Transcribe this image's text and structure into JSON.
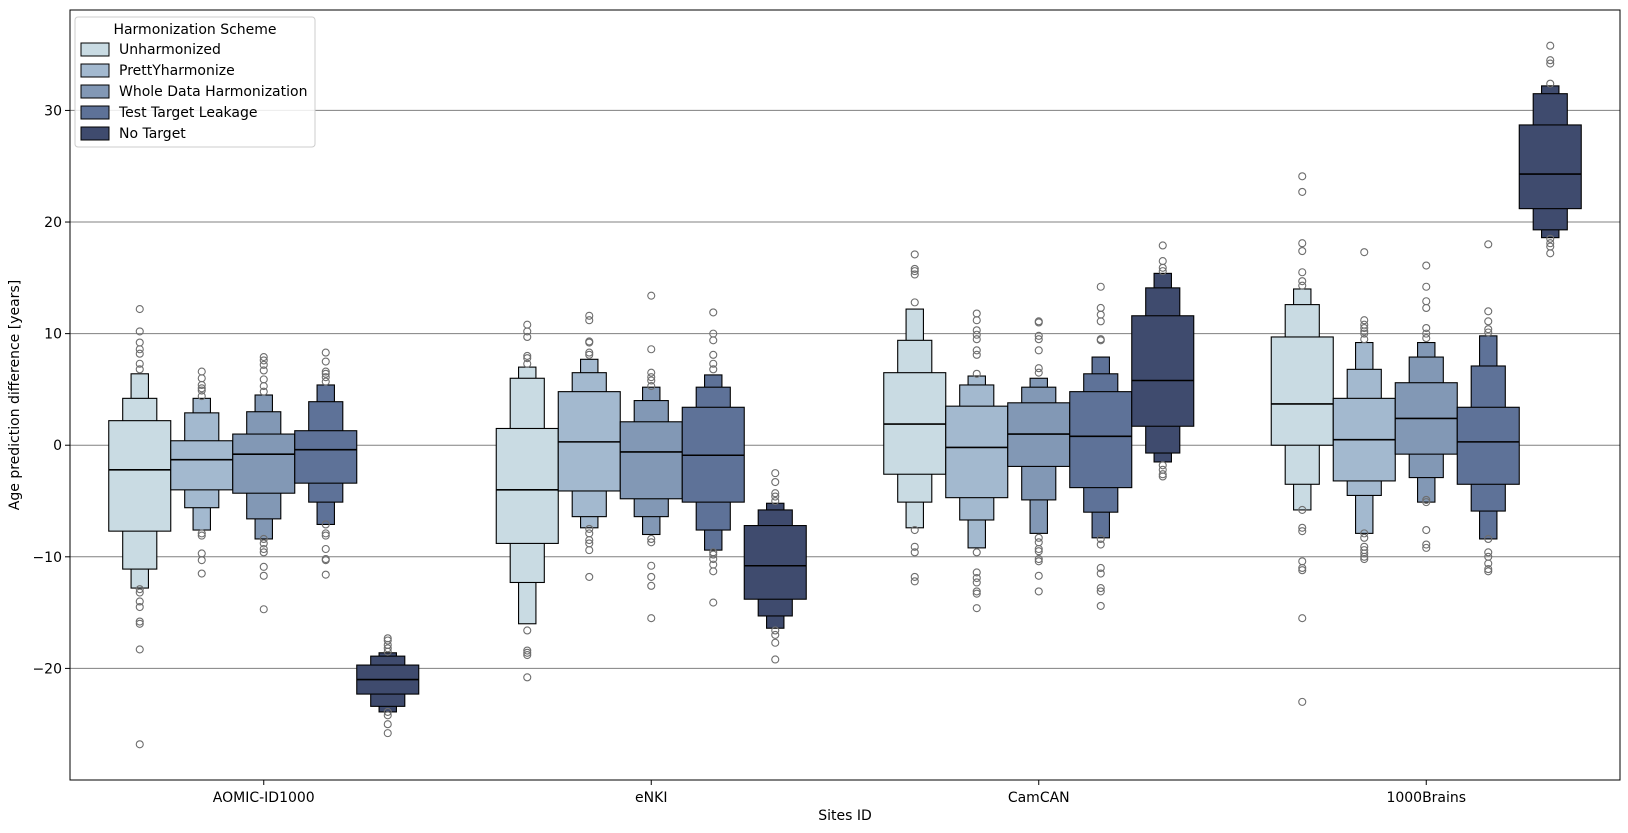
{
  "chart_data": {
    "type": "boxenplot",
    "xlabel": "Sites ID",
    "ylabel": "Age prediction difference [years]",
    "ylim": [
      -30,
      39
    ],
    "yticks": [
      -20,
      -10,
      0,
      10,
      20,
      30
    ],
    "ytick_labels": [
      "−20",
      "−10",
      "0",
      "10",
      "20",
      "30"
    ],
    "grid": "horizontal",
    "categories": [
      "AOMIC-ID1000",
      "eNKI",
      "CamCAN",
      "1000Brains"
    ],
    "legend": {
      "title": "Harmonization Scheme",
      "location": "top-left",
      "entries": [
        "Unharmonized",
        "PrettYharmonize",
        "Whole Data Harmonization",
        "Test Target Leakage",
        "No Target"
      ]
    },
    "colors": [
      "#c9dbe3",
      "#a3b9cf",
      "#8298b5",
      "#5e7298",
      "#3f4b6e"
    ],
    "series": [
      {
        "name": "Unharmonized",
        "boxes": [
          {
            "median": -2.2,
            "levels": [
              [
                -7.7,
                2.2
              ],
              [
                -11.1,
                4.2
              ],
              [
                -12.8,
                6.4
              ]
            ],
            "outliers": [
              -26.8,
              -18.3,
              -16.0,
              -15.8,
              -14.5,
              -14.0,
              -13.2,
              -12.9,
              6.8,
              7.3,
              8.2,
              8.6,
              9.2,
              10.2,
              12.2
            ]
          },
          {
            "median": -4.0,
            "levels": [
              [
                -8.8,
                1.5
              ],
              [
                -12.3,
                6.0
              ],
              [
                -16.0,
                7.0
              ]
            ],
            "outliers": [
              -20.8,
              -18.8,
              -18.6,
              -18.4,
              -16.6,
              7.3,
              7.8,
              8.0,
              9.7,
              10.2,
              10.8
            ]
          },
          {
            "median": 1.9,
            "levels": [
              [
                -2.6,
                6.5
              ],
              [
                -5.1,
                9.4
              ],
              [
                -7.4,
                12.2
              ]
            ],
            "outliers": [
              -12.2,
              -11.8,
              -9.6,
              -9.1,
              -7.6,
              12.8,
              15.3,
              15.6,
              15.8,
              17.1
            ]
          },
          {
            "median": 3.7,
            "levels": [
              [
                0.0,
                9.7
              ],
              [
                -3.5,
                12.6
              ],
              [
                -5.8,
                14.0
              ]
            ],
            "outliers": [
              -23.0,
              -15.5,
              -11.2,
              -11.0,
              -10.4,
              -7.7,
              -7.4,
              -5.8,
              14.3,
              14.7,
              15.5,
              17.4,
              18.1,
              22.7,
              24.1
            ]
          }
        ]
      },
      {
        "name": "PrettYharmonize",
        "boxes": [
          {
            "median": -1.3,
            "levels": [
              [
                -4.0,
                0.4
              ],
              [
                -5.6,
                2.9
              ],
              [
                -7.6,
                4.2
              ]
            ],
            "outliers": [
              -11.5,
              -10.3,
              -9.7,
              -8.1,
              -7.9,
              4.4,
              4.9,
              5.1,
              5.4,
              6.0,
              6.6
            ]
          },
          {
            "median": 0.3,
            "levels": [
              [
                -4.1,
                4.8
              ],
              [
                -6.4,
                6.5
              ],
              [
                -7.4,
                7.7
              ]
            ],
            "outliers": [
              -11.8,
              -9.4,
              -8.8,
              -8.5,
              -7.9,
              -7.5,
              8.1,
              8.3,
              9.2,
              9.3,
              11.2,
              11.6
            ]
          },
          {
            "median": -0.2,
            "levels": [
              [
                -4.7,
                3.5
              ],
              [
                -6.7,
                5.4
              ],
              [
                -9.2,
                6.2
              ]
            ],
            "outliers": [
              -14.6,
              -13.3,
              -13.1,
              -12.3,
              -11.9,
              -11.4,
              -9.6,
              6.4,
              8.1,
              8.5,
              9.5,
              9.9,
              10.3,
              11.2,
              11.8
            ]
          },
          {
            "median": 0.5,
            "levels": [
              [
                -3.2,
                4.2
              ],
              [
                -4.5,
                6.8
              ],
              [
                -7.9,
                9.2
              ]
            ],
            "outliers": [
              -10.2,
              -10.0,
              -9.7,
              -9.4,
              -9.1,
              -8.3,
              -7.9,
              9.5,
              10.0,
              10.2,
              10.5,
              10.8,
              11.2,
              17.3
            ]
          }
        ]
      },
      {
        "name": "Whole Data Harmonization",
        "boxes": [
          {
            "median": -0.8,
            "levels": [
              [
                -4.3,
                1.0
              ],
              [
                -6.6,
                3.0
              ],
              [
                -8.4,
                4.5
              ]
            ],
            "outliers": [
              -14.7,
              -11.7,
              -10.9,
              -9.6,
              -9.3,
              -8.8,
              -8.4,
              4.8,
              5.3,
              5.9,
              6.7,
              7.2,
              7.6,
              7.9
            ]
          },
          {
            "median": -0.6,
            "levels": [
              [
                -4.8,
                2.1
              ],
              [
                -6.4,
                4.0
              ],
              [
                -8.0,
                5.2
              ]
            ],
            "outliers": [
              -15.5,
              -12.6,
              -11.8,
              -10.8,
              -8.7,
              -8.4,
              5.3,
              5.8,
              6.1,
              6.5,
              8.6,
              13.4
            ]
          },
          {
            "median": 1.0,
            "levels": [
              [
                -1.9,
                3.8
              ],
              [
                -4.9,
                5.2
              ],
              [
                -7.9,
                6.0
              ]
            ],
            "outliers": [
              -13.1,
              -11.7,
              -10.4,
              -10.2,
              -9.5,
              -9.3,
              -8.7,
              -8.3,
              6.5,
              6.9,
              8.5,
              9.5,
              9.8,
              11.0,
              11.1
            ]
          },
          {
            "median": 2.4,
            "levels": [
              [
                -0.8,
                5.6
              ],
              [
                -2.9,
                7.9
              ],
              [
                -5.1,
                9.2
              ]
            ],
            "outliers": [
              -9.2,
              -8.9,
              -7.6,
              -5.1,
              -4.9,
              9.6,
              10.0,
              10.5,
              12.3,
              12.9,
              14.2,
              16.1
            ]
          }
        ]
      },
      {
        "name": "Test Target Leakage",
        "boxes": [
          {
            "median": -0.4,
            "levels": [
              [
                -3.4,
                1.3
              ],
              [
                -5.1,
                3.9
              ],
              [
                -7.1,
                5.4
              ]
            ],
            "outliers": [
              -11.6,
              -10.3,
              -10.2,
              -9.3,
              -8.1,
              -7.9,
              -7.1,
              5.7,
              6.1,
              6.4,
              6.6,
              7.5,
              8.3
            ]
          },
          {
            "median": -0.9,
            "levels": [
              [
                -5.1,
                3.4
              ],
              [
                -7.6,
                5.2
              ],
              [
                -9.4,
                6.3
              ]
            ],
            "outliers": [
              -14.1,
              -11.3,
              -10.7,
              -10.2,
              -9.8,
              -9.6,
              6.8,
              7.3,
              8.1,
              9.4,
              10.0,
              11.9
            ]
          },
          {
            "median": 0.8,
            "levels": [
              [
                -3.8,
                4.8
              ],
              [
                -6.0,
                6.4
              ],
              [
                -8.3,
                7.9
              ]
            ],
            "outliers": [
              -14.4,
              -13.1,
              -12.8,
              -11.5,
              -11.0,
              -8.9,
              -8.4,
              9.4,
              9.5,
              11.1,
              11.7,
              12.3,
              14.2
            ]
          },
          {
            "median": 0.3,
            "levels": [
              [
                -3.5,
                3.4
              ],
              [
                -5.9,
                7.1
              ],
              [
                -8.4,
                9.8
              ]
            ],
            "outliers": [
              -11.3,
              -11.1,
              -10.6,
              -10.0,
              -9.6,
              -8.4,
              10.1,
              10.4,
              11.1,
              12.0,
              18.0
            ]
          }
        ]
      },
      {
        "name": "No Target",
        "boxes": [
          {
            "median": -21.0,
            "levels": [
              [
                -22.3,
                -19.7
              ],
              [
                -23.4,
                -18.9
              ],
              [
                -23.9,
                -18.6
              ]
            ],
            "outliers": [
              -25.8,
              -25.0,
              -24.2,
              -23.9,
              -18.5,
              -18.2,
              -17.9,
              -17.5,
              -17.3
            ]
          },
          {
            "median": -10.8,
            "levels": [
              [
                -13.8,
                -7.2
              ],
              [
                -15.3,
                -5.8
              ],
              [
                -16.4,
                -5.2
              ]
            ],
            "outliers": [
              -19.2,
              -17.7,
              -17.0,
              -16.6,
              -5.0,
              -4.6,
              -4.3,
              -3.3,
              -2.5
            ]
          },
          {
            "median": 5.8,
            "levels": [
              [
                1.7,
                11.6
              ],
              [
                -0.7,
                14.1
              ],
              [
                -1.5,
                15.4
              ]
            ],
            "outliers": [
              -2.8,
              -2.6,
              -2.2,
              -1.8,
              15.6,
              15.9,
              16.5,
              17.9
            ]
          },
          {
            "median": 24.3,
            "levels": [
              [
                21.2,
                28.7
              ],
              [
                19.3,
                31.5
              ],
              [
                18.6,
                32.2
              ]
            ],
            "outliers": [
              17.2,
              17.8,
              18.1,
              18.5,
              32.4,
              34.2,
              34.5,
              35.8
            ]
          }
        ]
      }
    ]
  }
}
